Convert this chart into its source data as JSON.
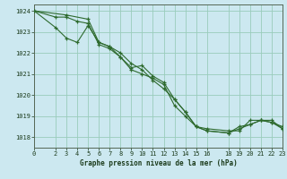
{
  "title": "Graphe pression niveau de la mer (hPa)",
  "background_color": "#cce8f0",
  "grid_color": "#99ccbb",
  "line_color": "#2d6a2d",
  "xlim": [
    0,
    23
  ],
  "ylim": [
    1017.5,
    1024.3
  ],
  "yticks": [
    1018,
    1019,
    1020,
    1021,
    1022,
    1023,
    1024
  ],
  "xticks": [
    0,
    2,
    3,
    4,
    5,
    6,
    7,
    8,
    9,
    10,
    11,
    12,
    13,
    14,
    15,
    16,
    18,
    19,
    20,
    21,
    22,
    23
  ],
  "series": [
    {
      "x": [
        0,
        2,
        3,
        4,
        5,
        6,
        7,
        8,
        9,
        10,
        11,
        12,
        13,
        14,
        15,
        16,
        18,
        19,
        20,
        21,
        22,
        23
      ],
      "y": [
        1024.0,
        1023.7,
        1023.7,
        1023.5,
        1023.4,
        1022.4,
        1022.2,
        1021.8,
        1021.2,
        1021.0,
        1020.8,
        1020.5,
        1019.5,
        1019.0,
        1018.5,
        1018.4,
        1018.3,
        1018.3,
        1018.8,
        1018.8,
        1018.7,
        1018.5
      ]
    },
    {
      "x": [
        0,
        3,
        5,
        6,
        7,
        8,
        9,
        10,
        11,
        12,
        13,
        14,
        15,
        16,
        18,
        19,
        20,
        21,
        22,
        23
      ],
      "y": [
        1024.0,
        1023.8,
        1023.6,
        1022.5,
        1022.3,
        1022.0,
        1021.5,
        1021.2,
        1020.7,
        1020.3,
        1019.8,
        1019.2,
        1018.5,
        1018.3,
        1018.2,
        1018.5,
        1018.6,
        1018.8,
        1018.8,
        1018.4
      ]
    },
    {
      "x": [
        0,
        2,
        3,
        4,
        5,
        6,
        7,
        8,
        9,
        10,
        11,
        12,
        13,
        14,
        15,
        16,
        18,
        19,
        20,
        21,
        22,
        23
      ],
      "y": [
        1024.0,
        1023.2,
        1022.7,
        1022.5,
        1023.3,
        1022.5,
        1022.3,
        1021.8,
        1021.3,
        1021.4,
        1020.9,
        1020.6,
        1019.8,
        1019.2,
        1018.5,
        1018.3,
        1018.2,
        1018.4,
        1018.6,
        1018.8,
        1018.7,
        1018.4
      ]
    }
  ]
}
